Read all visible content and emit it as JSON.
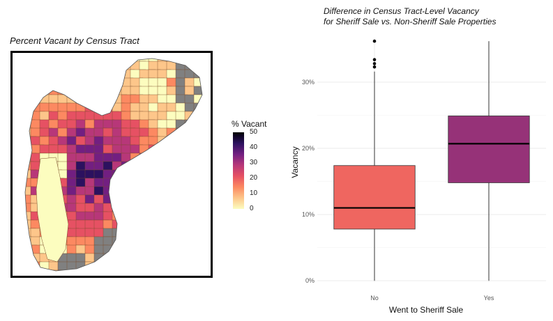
{
  "map": {
    "title": "Percent Vacant by Census Tract",
    "legend": {
      "title": "% Vacant",
      "ticks": [
        "50",
        "40",
        "30",
        "20",
        "10",
        "0"
      ],
      "colors": [
        "#fcfdbf",
        "#fdc68a",
        "#fc8961",
        "#e65163",
        "#b73779",
        "#721f81",
        "#2c115f",
        "#000004"
      ]
    },
    "no_data_color": "#808080"
  },
  "chart_data": {
    "type": "boxplot",
    "title": "Difference in Census Tract-Level Vacancy\nfor Sheriff Sale vs. Non-Sheriff Sale Properties",
    "xlabel": "Went to Sheriff Sale",
    "ylabel": "Vacancy",
    "ylim": [
      -0.002,
      0.36
    ],
    "yticks": [
      0,
      0.1,
      0.2,
      0.3
    ],
    "ytick_labels": [
      "0%",
      "10%",
      "20%",
      "30%"
    ],
    "categories": [
      "No",
      "Yes"
    ],
    "boxes": [
      {
        "category": "No",
        "color": "#ef6660",
        "whisker_low": 0.0,
        "q1": 0.078,
        "median": 0.11,
        "q3": 0.174,
        "whisker_high": 0.316,
        "outliers": [
          0.323,
          0.328,
          0.334,
          0.362
        ]
      },
      {
        "category": "Yes",
        "color": "#963278",
        "whisker_low": 0.0,
        "q1": 0.148,
        "median": 0.207,
        "q3": 0.249,
        "whisker_high": 0.362,
        "outliers": []
      }
    ],
    "grid": true
  }
}
